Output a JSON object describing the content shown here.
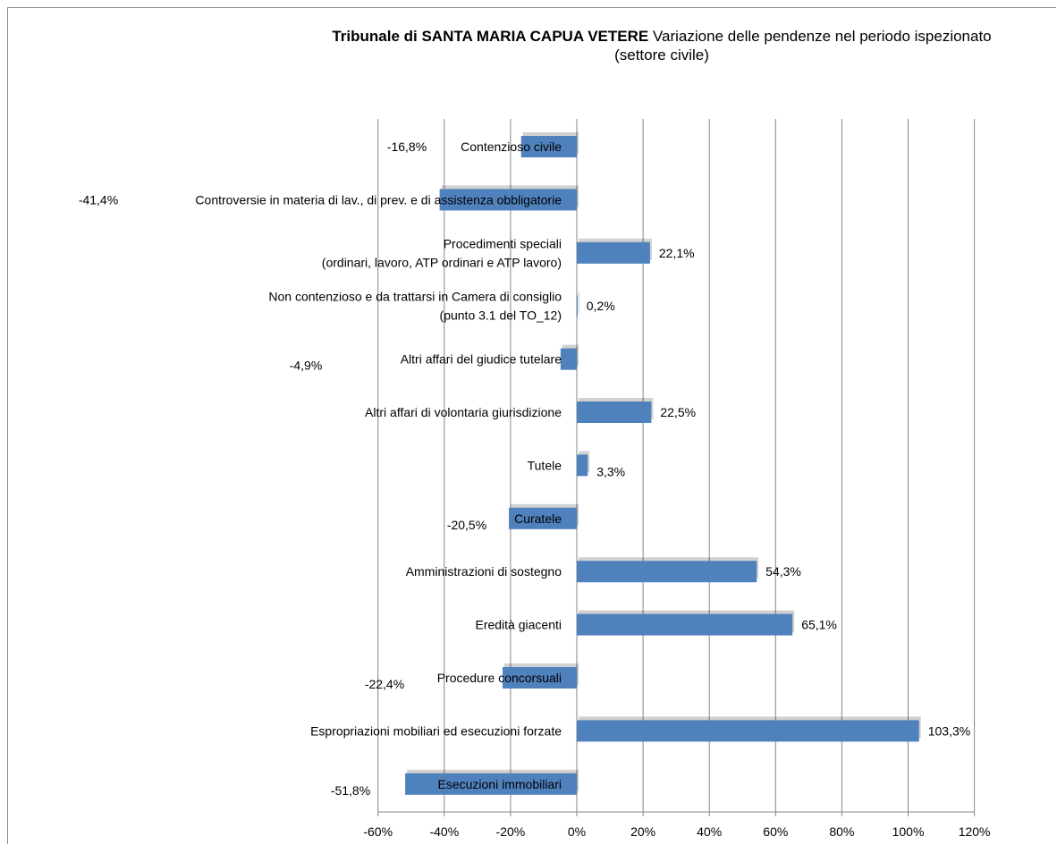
{
  "chart_data": {
    "type": "bar",
    "orientation": "horizontal",
    "title": "Tribunale di SANTA MARIA CAPUA VETERE",
    "subtitle_line1": "Variazione delle pendenze nel periodo ispezionato",
    "subtitle_line2": "(settore civile)",
    "categories": [
      [
        "Contenzioso civile"
      ],
      [
        "Controversie in materia di lav., di prev. e di assistenza obbligatorie"
      ],
      [
        "Procedimenti speciali",
        "(ordinari, lavoro, ATP ordinari e ATP lavoro)"
      ],
      [
        "Non contenzioso e da trattarsi in Camera di consiglio",
        "(punto 3.1 del TO_12)"
      ],
      [
        "Altri affari del giudice tutelare"
      ],
      [
        "Altri affari di volontaria giurisdizione"
      ],
      [
        "Tutele"
      ],
      [
        "Curatele"
      ],
      [
        "Amministrazioni di sostegno"
      ],
      [
        "Eredità giacenti"
      ],
      [
        "Procedure concorsuali"
      ],
      [
        "Espropriazioni mobiliari ed esecuzioni forzate"
      ],
      [
        "Esecuzioni immobiliari"
      ]
    ],
    "values": [
      -16.8,
      -41.4,
      22.1,
      0.2,
      -4.9,
      22.5,
      3.3,
      -20.5,
      54.3,
      65.1,
      -22.4,
      103.3,
      -51.8
    ],
    "value_labels": [
      "-16,8%",
      "-41,4%",
      "22,1%",
      "0,2%",
      "-4,9%",
      "22,5%",
      "3,3%",
      "-20,5%",
      "54,3%",
      "65,1%",
      "-22,4%",
      "103,3%",
      "-51,8%"
    ],
    "xlim": [
      -60,
      120
    ],
    "xticks": [
      -60,
      -40,
      -20,
      0,
      20,
      40,
      60,
      80,
      100,
      120
    ],
    "xtick_labels": [
      "-60%",
      "-40%",
      "-20%",
      "0%",
      "20%",
      "40%",
      "60%",
      "80%",
      "100%",
      "120%"
    ],
    "grid": true,
    "legend": "none",
    "bar_color": "#4f81bd",
    "grid_color": "#868686"
  }
}
